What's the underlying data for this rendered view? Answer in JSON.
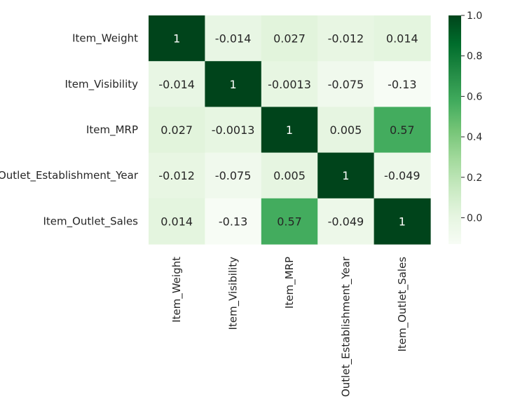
{
  "chart_data": {
    "type": "heatmap",
    "title": "",
    "xlabel": "",
    "ylabel": "",
    "rows": [
      "Item_Weight",
      "Item_Visibility",
      "Item_MRP",
      "Outlet_Establishment_Year",
      "Item_Outlet_Sales"
    ],
    "columns": [
      "Item_Weight",
      "Item_Visibility",
      "Item_MRP",
      "Outlet_Establishment_Year",
      "Item_Outlet_Sales"
    ],
    "values": [
      [
        1,
        -0.014,
        0.027,
        -0.012,
        0.014
      ],
      [
        -0.014,
        1,
        -0.0013,
        -0.075,
        -0.13
      ],
      [
        0.027,
        -0.0013,
        1,
        0.005,
        0.57
      ],
      [
        -0.012,
        -0.075,
        0.005,
        1,
        -0.049
      ],
      [
        0.014,
        -0.13,
        0.57,
        -0.049,
        1
      ]
    ],
    "cell_labels": [
      [
        "1",
        "-0.014",
        "0.027",
        "-0.012",
        "0.014"
      ],
      [
        "-0.014",
        "1",
        "-0.0013",
        "-0.075",
        "-0.13"
      ],
      [
        "0.027",
        "-0.0013",
        "1",
        "0.005",
        "0.57"
      ],
      [
        "-0.012",
        "-0.075",
        "0.005",
        "1",
        "-0.049"
      ],
      [
        "0.014",
        "-0.13",
        "0.57",
        "-0.049",
        "1"
      ]
    ],
    "colormap": "Greens",
    "color_low": "#f7fcf5",
    "color_high": "#00441b",
    "vmin": -0.13,
    "vmax": 1.0,
    "colorbar": {
      "ticks": [
        0.0,
        0.2,
        0.4,
        0.6,
        0.8,
        1.0
      ],
      "tick_labels": [
        "0.0",
        "0.2",
        "0.4",
        "0.6",
        "0.8",
        "1.0"
      ],
      "placement": "right"
    },
    "annot_color_dark": "#262626",
    "annot_color_light": "#ffffff"
  }
}
